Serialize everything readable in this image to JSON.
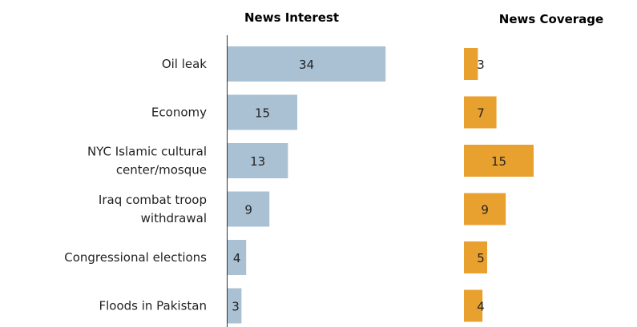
{
  "chart_data": [
    {
      "type": "bar",
      "orientation": "horizontal",
      "title": "News Interest",
      "categories": [
        [
          "Oil leak"
        ],
        [
          "Economy"
        ],
        [
          "NYC Islamic cultural",
          "center/mosque"
        ],
        [
          "Iraq combat troop",
          "withdrawal"
        ],
        [
          "Congressional elections"
        ],
        [
          "Floods in Pakistan"
        ]
      ],
      "values": [
        34,
        15,
        13,
        9,
        4,
        3
      ],
      "color": "#a9c1d3",
      "xlim": [
        0,
        40
      ],
      "grid": false,
      "axis_line": true
    },
    {
      "type": "bar",
      "orientation": "horizontal",
      "title": "News Coverage",
      "categories": [
        [
          "Oil leak"
        ],
        [
          "Economy"
        ],
        [
          "NYC Islamic cultural",
          "center/mosque"
        ],
        [
          "Iraq combat troop",
          "withdrawal"
        ],
        [
          "Congressional elections"
        ],
        [
          "Floods in Pakistan"
        ]
      ],
      "values": [
        3,
        7,
        15,
        9,
        5,
        4
      ],
      "color": "#e8a02f",
      "xlim": [
        0,
        40
      ],
      "grid": false,
      "axis_line": false
    }
  ]
}
